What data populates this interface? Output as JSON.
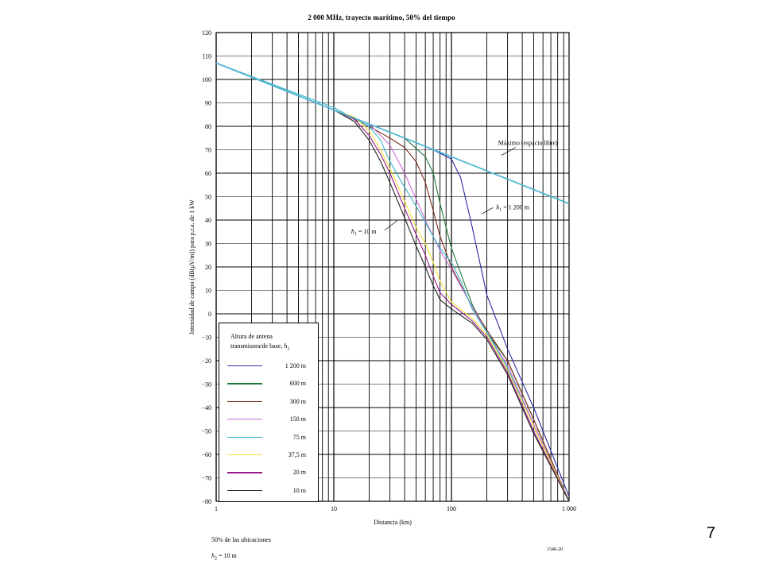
{
  "slide_number": "7",
  "footnotes": {
    "locations": "50% de las ubicaciones",
    "h2": "h",
    "h2_sub": "2",
    "h2_val": " = 10 m",
    "figure_code": "1546-20"
  },
  "chart_data": {
    "type": "line",
    "title": "2 000 MHz, trayecto marítimo, 50% del tiempo",
    "xlabel": "Distancia (km)",
    "ylabel": "Intensidad de campo (dB(μV/m)) para p.r.a. de 1 kW",
    "x_scale": "log",
    "xlim": [
      1,
      1000
    ],
    "ylim": [
      -80,
      120
    ],
    "x_ticks": [
      1,
      10,
      100,
      1000
    ],
    "x_tick_labels": [
      "1",
      "10",
      "100",
      "1 000"
    ],
    "y_ticks": [
      120,
      110,
      100,
      90,
      80,
      70,
      60,
      50,
      40,
      30,
      20,
      10,
      0,
      -10,
      -20,
      -30,
      -40,
      -50,
      -60,
      -70,
      -80
    ],
    "y_tick_labels": [
      "120",
      "110",
      "100",
      "90",
      "80",
      "70",
      "60",
      "50",
      "40",
      "30",
      "20",
      "10",
      "0",
      "−10",
      "−20",
      "−30",
      "−40",
      "−50",
      "−60",
      "−70",
      "−80"
    ],
    "grid": true,
    "annotations": [
      {
        "text": "Máximo (espacio libre)",
        "x": 310,
        "y": 72
      },
      {
        "text_var": "h",
        "text_sub": "1",
        "text_rest": " = 1 200 m",
        "x": 240,
        "y": 46
      },
      {
        "text_var": "h",
        "text_sub": "1",
        "text_rest": " = 10 m",
        "x": 14.5,
        "y": 35
      }
    ],
    "legend": {
      "title_line1": "Altura de antena",
      "title_line2": "transmisora/de base, ",
      "title_var": "h",
      "title_sub": "1",
      "placement": "bottom-left"
    },
    "series": [
      {
        "name": "1 200 m",
        "color": "#2a2aa6",
        "x": [
          1,
          10,
          20,
          40,
          70,
          100,
          120,
          150,
          200,
          300,
          500,
          1000
        ],
        "y": [
          107,
          87,
          81,
          75,
          70,
          66,
          58,
          37,
          8,
          -15,
          -40,
          -78
        ]
      },
      {
        "name": "600 m",
        "color": "#1f7a3a",
        "x": [
          1,
          10,
          20,
          40,
          60,
          70,
          80,
          100,
          150,
          200,
          300,
          500,
          1000
        ],
        "y": [
          107,
          87,
          81,
          75,
          67,
          60,
          47,
          28,
          4,
          -8,
          -20,
          -45,
          -80
        ]
      },
      {
        "name": "300 m",
        "color": "#7a2a1a",
        "x": [
          1,
          10,
          20,
          30,
          40,
          50,
          60,
          70,
          80,
          100,
          150,
          200,
          300,
          500,
          1000
        ],
        "y": [
          107,
          87,
          80,
          75,
          71,
          65,
          56,
          44,
          33,
          20,
          3,
          -7,
          -20,
          -45,
          -80
        ]
      },
      {
        "name": "150 m",
        "color": "#c86ed8",
        "x": [
          1,
          10,
          20,
          30,
          40,
          50,
          60,
          70,
          80,
          100,
          150,
          200,
          300,
          500,
          1000
        ],
        "y": [
          107,
          87,
          81,
          72,
          60,
          49,
          40,
          33,
          27,
          19,
          3,
          -8,
          -22,
          -47,
          -80
        ]
      },
      {
        "name": "75 m",
        "color": "#3ab5c8",
        "x": [
          1,
          10,
          20,
          25,
          30,
          40,
          50,
          60,
          70,
          80,
          100,
          120,
          150,
          200,
          300,
          500,
          1000
        ],
        "y": [
          107,
          88,
          80,
          74,
          65,
          54,
          46,
          39,
          33,
          28,
          22,
          14,
          2,
          -8,
          -23,
          -48,
          -80
        ]
      },
      {
        "name": "37,5 m",
        "color": "#f2e23a",
        "x": [
          1,
          10,
          15,
          20,
          25,
          30,
          40,
          50,
          60,
          70,
          80,
          100,
          150,
          200,
          300,
          500,
          1000
        ],
        "y": [
          107,
          87,
          84,
          78,
          70,
          62,
          48,
          37,
          30,
          22,
          14,
          5,
          -2,
          -9,
          -24,
          -48,
          -80
        ]
      },
      {
        "name": "20 m",
        "color": "#9a1a8a",
        "x": [
          1,
          10,
          15,
          20,
          25,
          30,
          40,
          50,
          60,
          70,
          80,
          100,
          150,
          200,
          300,
          500,
          1000
        ],
        "y": [
          107,
          87,
          83,
          76,
          68,
          60,
          45,
          34,
          25,
          16,
          9,
          4,
          -3,
          -10,
          -25,
          -50,
          -80
        ]
      },
      {
        "name": "10 m",
        "color": "#222222",
        "x": [
          1,
          10,
          15,
          20,
          25,
          30,
          40,
          50,
          60,
          70,
          80,
          100,
          150,
          200,
          300,
          500,
          1000
        ],
        "y": [
          107,
          87,
          82,
          74,
          65,
          56,
          41,
          29,
          20,
          12,
          6,
          2,
          -4,
          -11,
          -26,
          -51,
          -80
        ]
      },
      {
        "name": "Máximo (espacio libre)",
        "color": "#4fb6d6",
        "show_in_legend": false,
        "x": [
          1,
          10,
          100,
          1000
        ],
        "y": [
          107,
          87,
          67,
          47
        ]
      }
    ]
  }
}
